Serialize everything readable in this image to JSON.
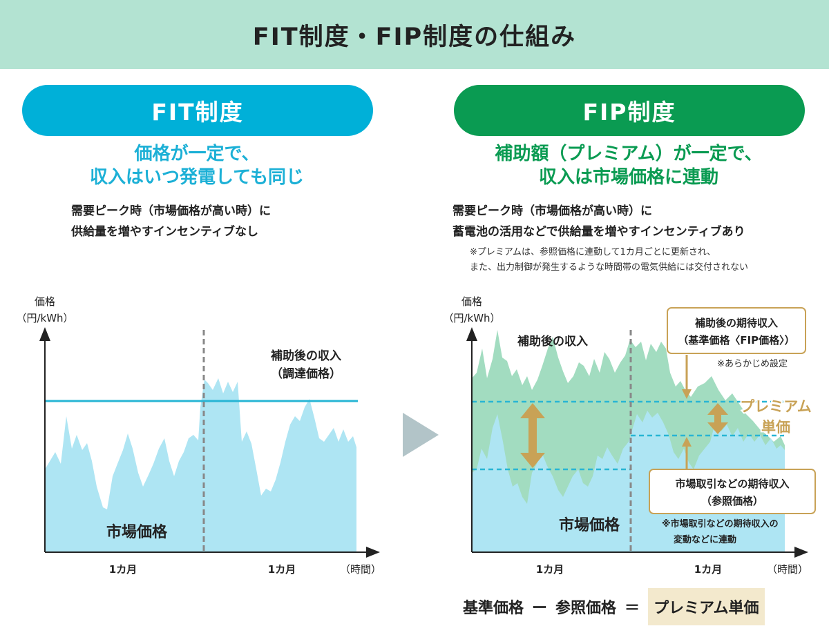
{
  "title": "FIT制度・FIP制度の仕組み",
  "fit": {
    "pill_label": "FIT制度",
    "headline_line1": "価格が一定で、",
    "headline_line2": "収入はいつ発電しても同じ",
    "desc_line1": "需要ピーク時（市場価格が高い時）に",
    "desc_line2": "供給量を増やすインセンティブなし",
    "chart": {
      "y_label_line1": "価格",
      "y_label_line2": "（円/kWh）",
      "x_label": "（時間）",
      "period_label_1": "1カ月",
      "period_label_2": "1カ月",
      "income_label_line1": "補助後の収入",
      "income_label_line2": "（調達価格）",
      "market_label": "市場価格"
    }
  },
  "fip": {
    "pill_label": "FIP制度",
    "headline_line1": "補助額（プレミアム）が一定で、",
    "headline_line2": "収入は市場価格に連動",
    "desc_line1": "需要ピーク時（市場価格が高い時）に",
    "desc_line2": "蓄電池の活用などで供給量を増やすインセンティブあり",
    "note_line1": "※プレミアムは、参照価格に連動して1カ月ごとに更新され、",
    "note_line2": "また、出力制御が発生するような時間帯の電気供給には交付されない",
    "chart": {
      "y_label_line1": "価格",
      "y_label_line2": "（円/kWh）",
      "x_label": "（時間）",
      "period_label_1": "1カ月",
      "period_label_2": "1カ月",
      "income_label": "補助後の収入",
      "market_label": "市場価格",
      "expected_income_box_line1": "補助後の期待収入",
      "expected_income_box_line2": "（基準価格〈FIP価格〉）",
      "expected_income_note": "※あらかじめ設定",
      "premium_label_line1": "プレミアム",
      "premium_label_line2": "単価",
      "market_expected_box_line1": "市場取引などの期待収入",
      "market_expected_box_line2": "（参照価格）",
      "market_expected_note_line1": "※市場取引などの期待収入の",
      "market_expected_note_line2": "変動などに連動"
    }
  },
  "formula": {
    "left": "基準価格",
    "minus": "ー",
    "middle": "参照価格",
    "equals": "＝",
    "result": "プレミアム単価"
  },
  "colors": {
    "title_bg": "#b3e3d2",
    "fit_blue": "#00b0d8",
    "fip_green": "#0a9b52",
    "market_fill": "#aee5f3",
    "income_fill": "#a2dcc0",
    "premium_gold": "#c8a256",
    "formula_bg": "#f3e9cd"
  }
}
